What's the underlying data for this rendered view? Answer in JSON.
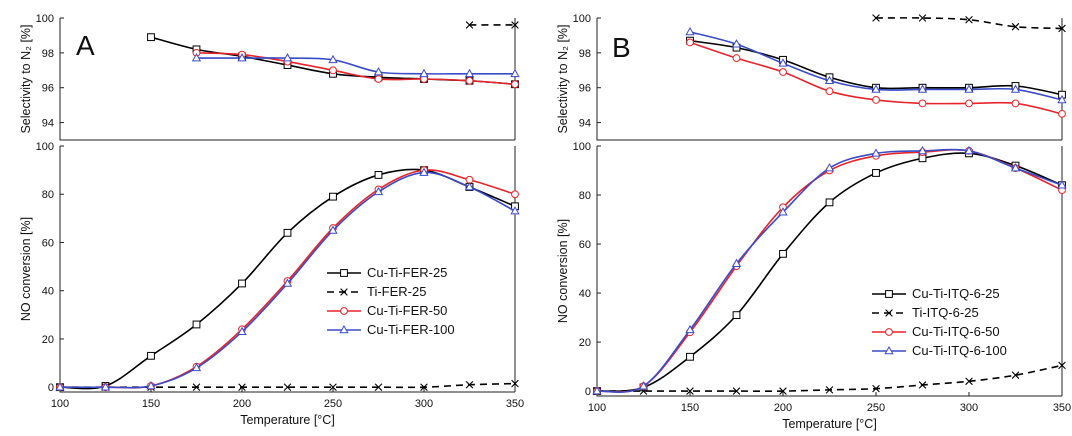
{
  "figure": {
    "panels": [
      "A",
      "B"
    ]
  },
  "chart_data": [
    {
      "panel": "A",
      "subplot": "selectivity",
      "type": "line",
      "ylabel": "Selectivity to N₂ [%]",
      "xlim": [
        100,
        350
      ],
      "ylim": [
        93,
        100
      ],
      "yticks": [
        94,
        96,
        98,
        100
      ],
      "grid": false,
      "series": [
        {
          "name": "Cu-Ti-FER-25",
          "color": "#000000",
          "dash": "solid",
          "marker": "square",
          "x": [
            150,
            175,
            200,
            225,
            250,
            275,
            300,
            325,
            350
          ],
          "y": [
            98.9,
            98.2,
            97.8,
            97.3,
            96.8,
            96.6,
            96.5,
            96.4,
            96.2
          ]
        },
        {
          "name": "Ti-FER-25",
          "color": "#000000",
          "dash": "dashed",
          "marker": "x",
          "x": [
            325,
            350
          ],
          "y": [
            99.6,
            99.6
          ]
        },
        {
          "name": "Cu-Ti-FER-50",
          "color": "#e8242b",
          "dash": "solid",
          "marker": "circle",
          "x": [
            175,
            200,
            225,
            250,
            275,
            300,
            325,
            350
          ],
          "y": [
            98.0,
            97.9,
            97.5,
            97.0,
            96.5,
            96.5,
            96.4,
            96.2
          ]
        },
        {
          "name": "Cu-Ti-FER-100",
          "color": "#3a4bc7",
          "dash": "solid",
          "marker": "triangle",
          "x": [
            175,
            200,
            225,
            250,
            275,
            300,
            325,
            350
          ],
          "y": [
            97.7,
            97.7,
            97.7,
            97.6,
            96.9,
            96.8,
            96.8,
            96.8
          ]
        }
      ]
    },
    {
      "panel": "A",
      "subplot": "conversion",
      "type": "line",
      "xlabel": "Temperature [°C]",
      "ylabel": "NO conversion [%]",
      "xlim": [
        100,
        350
      ],
      "ylim": [
        -2,
        100
      ],
      "xticks": [
        100,
        150,
        200,
        250,
        300,
        350
      ],
      "yticks": [
        0,
        20,
        40,
        60,
        80,
        100
      ],
      "legend_position": "lower-right",
      "grid": false,
      "series": [
        {
          "name": "Cu-Ti-FER-25",
          "color": "#000000",
          "dash": "solid",
          "marker": "square",
          "x": [
            100,
            125,
            150,
            175,
            200,
            225,
            250,
            275,
            300,
            325,
            350
          ],
          "y": [
            0,
            0.5,
            13,
            26,
            43,
            64,
            79,
            88,
            90,
            83,
            75
          ]
        },
        {
          "name": "Ti-FER-25",
          "color": "#000000",
          "dash": "dashed",
          "marker": "x",
          "x": [
            100,
            125,
            150,
            175,
            200,
            225,
            250,
            275,
            300,
            325,
            350
          ],
          "y": [
            0,
            0,
            0,
            0,
            0,
            0,
            0,
            0,
            0,
            1,
            1.5
          ]
        },
        {
          "name": "Cu-Ti-FER-50",
          "color": "#e8242b",
          "dash": "solid",
          "marker": "circle",
          "x": [
            100,
            125,
            150,
            175,
            200,
            225,
            250,
            275,
            300,
            325,
            350
          ],
          "y": [
            0,
            0,
            0.5,
            8.5,
            24,
            44,
            66,
            82,
            90,
            86,
            80
          ]
        },
        {
          "name": "Cu-Ti-FER-100",
          "color": "#3a4bc7",
          "dash": "solid",
          "marker": "triangle",
          "x": [
            100,
            125,
            150,
            175,
            200,
            225,
            250,
            275,
            300,
            325,
            350
          ],
          "y": [
            0,
            0,
            0.5,
            8,
            23,
            43,
            65,
            81,
            89,
            83,
            73
          ]
        }
      ]
    },
    {
      "panel": "B",
      "subplot": "selectivity",
      "type": "line",
      "ylabel": "Selectivity to N₂ [%]",
      "xlim": [
        100,
        350
      ],
      "ylim": [
        93,
        100
      ],
      "yticks": [
        94,
        96,
        98,
        100
      ],
      "grid": false,
      "series": [
        {
          "name": "Cu-Ti-ITQ-6-25",
          "color": "#000000",
          "dash": "solid",
          "marker": "square",
          "x": [
            150,
            175,
            200,
            225,
            250,
            275,
            300,
            325,
            350
          ],
          "y": [
            98.7,
            98.3,
            97.6,
            96.6,
            96.0,
            96.0,
            96.0,
            96.1,
            95.6
          ]
        },
        {
          "name": "Ti-ITQ-6-25",
          "color": "#000000",
          "dash": "dashed",
          "marker": "x",
          "x": [
            250,
            275,
            300,
            325,
            350
          ],
          "y": [
            100,
            100,
            99.9,
            99.5,
            99.4
          ]
        },
        {
          "name": "Cu-Ti-ITQ-6-50",
          "color": "#e8242b",
          "dash": "solid",
          "marker": "circle",
          "x": [
            150,
            175,
            200,
            225,
            250,
            275,
            300,
            325,
            350
          ],
          "y": [
            98.6,
            97.7,
            96.9,
            95.8,
            95.3,
            95.1,
            95.1,
            95.1,
            94.5
          ]
        },
        {
          "name": "Cu-Ti-ITQ-6-100",
          "color": "#3a4bc7",
          "dash": "solid",
          "marker": "triangle",
          "x": [
            150,
            175,
            200,
            225,
            250,
            275,
            300,
            325,
            350
          ],
          "y": [
            99.2,
            98.5,
            97.4,
            96.4,
            95.9,
            95.9,
            95.9,
            95.9,
            95.3
          ]
        }
      ]
    },
    {
      "panel": "B",
      "subplot": "conversion",
      "type": "line",
      "xlabel": "Temperature [°C]",
      "ylabel": "NO conversion [%]",
      "xlim": [
        100,
        350
      ],
      "ylim": [
        -2,
        100
      ],
      "xticks": [
        100,
        150,
        200,
        250,
        300,
        350
      ],
      "yticks": [
        0,
        20,
        40,
        60,
        80,
        100
      ],
      "legend_position": "lower-right",
      "grid": false,
      "series": [
        {
          "name": "Cu-Ti-ITQ-6-25",
          "color": "#000000",
          "dash": "solid",
          "marker": "square",
          "x": [
            100,
            125,
            150,
            175,
            200,
            225,
            250,
            275,
            300,
            325,
            350
          ],
          "y": [
            0,
            1.5,
            14,
            31,
            56,
            77,
            89,
            95,
            97,
            92,
            84
          ]
        },
        {
          "name": "Ti-ITQ-6-25",
          "color": "#000000",
          "dash": "dashed",
          "marker": "x",
          "x": [
            100,
            125,
            150,
            175,
            200,
            225,
            250,
            275,
            300,
            325,
            350
          ],
          "y": [
            0,
            0,
            0,
            0,
            0,
            0.5,
            1,
            2.5,
            4,
            6.5,
            10.5
          ]
        },
        {
          "name": "Cu-Ti-ITQ-6-50",
          "color": "#e8242b",
          "dash": "solid",
          "marker": "circle",
          "x": [
            100,
            125,
            150,
            175,
            200,
            225,
            250,
            275,
            300,
            325,
            350
          ],
          "y": [
            0,
            2,
            24,
            51,
            75,
            90,
            96,
            97.5,
            98,
            91,
            82
          ]
        },
        {
          "name": "Cu-Ti-ITQ-6-100",
          "color": "#3a4bc7",
          "dash": "solid",
          "marker": "triangle",
          "x": [
            100,
            125,
            150,
            175,
            200,
            225,
            250,
            275,
            300,
            325,
            350
          ],
          "y": [
            0,
            2,
            25,
            52,
            73,
            91,
            97,
            98,
            98,
            91,
            84
          ]
        }
      ]
    }
  ]
}
